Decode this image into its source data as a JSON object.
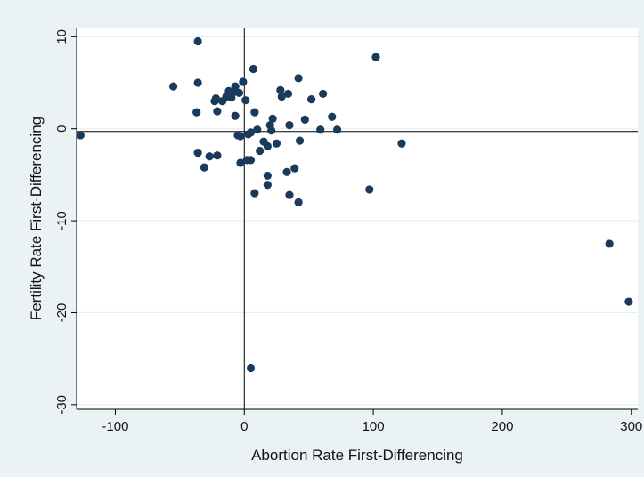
{
  "chart_data": {
    "type": "scatter",
    "xlabel": "Abortion Rate First-Differencing",
    "ylabel": "Fertility Rate First-Differencing",
    "xlim": [
      -130,
      305
    ],
    "ylim": [
      -30.5,
      11
    ],
    "xticks": [
      -100,
      0,
      100,
      200,
      300
    ],
    "yticks": [
      10,
      0,
      -10,
      -20,
      -30
    ],
    "xtick_labels": [
      "-100",
      "0",
      "100",
      "200",
      "300"
    ],
    "ytick_labels": [
      "10",
      "0",
      "-10",
      "-20",
      "-30"
    ],
    "reference_lines": {
      "x": 0,
      "y": -0.3
    },
    "grid": "horizontal",
    "marker_color": "#1a3a5c",
    "points": [
      [
        -127,
        -0.7
      ],
      [
        -55,
        4.6
      ],
      [
        -36,
        9.5
      ],
      [
        -36,
        5.0
      ],
      [
        -37,
        1.8
      ],
      [
        -36,
        -2.6
      ],
      [
        -31,
        -4.2
      ],
      [
        -27,
        -3.0
      ],
      [
        -23,
        3.0
      ],
      [
        -22,
        3.3
      ],
      [
        -21,
        1.9
      ],
      [
        -21,
        -2.9
      ],
      [
        -17,
        3.0
      ],
      [
        -14,
        3.5
      ],
      [
        -12,
        4.1
      ],
      [
        -10,
        3.4
      ],
      [
        -9,
        3.9
      ],
      [
        -7,
        4.6
      ],
      [
        -7,
        1.4
      ],
      [
        -5,
        -0.7
      ],
      [
        -4,
        3.9
      ],
      [
        -3,
        -0.8
      ],
      [
        -3,
        -3.7
      ],
      [
        -1,
        5.1
      ],
      [
        1,
        3.1
      ],
      [
        2,
        -3.4
      ],
      [
        3,
        -0.6
      ],
      [
        5,
        -0.4
      ],
      [
        5,
        -3.4
      ],
      [
        7,
        6.5
      ],
      [
        8,
        1.8
      ],
      [
        8,
        -7.0
      ],
      [
        10,
        -0.1
      ],
      [
        12,
        -2.4
      ],
      [
        15,
        -1.4
      ],
      [
        18,
        -1.9
      ],
      [
        18,
        -5.1
      ],
      [
        18,
        -6.1
      ],
      [
        20,
        0.4
      ],
      [
        21,
        -0.2
      ],
      [
        22,
        1.1
      ],
      [
        25,
        -1.6
      ],
      [
        28,
        4.2
      ],
      [
        29,
        3.5
      ],
      [
        33,
        -4.7
      ],
      [
        34,
        3.8
      ],
      [
        35,
        -7.2
      ],
      [
        35,
        0.4
      ],
      [
        39,
        -4.3
      ],
      [
        42,
        5.5
      ],
      [
        42,
        -8.0
      ],
      [
        43,
        -1.3
      ],
      [
        47,
        1.0
      ],
      [
        52,
        3.2
      ],
      [
        59,
        -0.1
      ],
      [
        61,
        3.8
      ],
      [
        68,
        1.3
      ],
      [
        72,
        -0.1
      ],
      [
        97,
        -6.6
      ],
      [
        102,
        7.8
      ],
      [
        122,
        -1.6
      ],
      [
        283,
        -12.5
      ],
      [
        298,
        -18.8
      ],
      [
        5,
        -26.0
      ]
    ]
  }
}
